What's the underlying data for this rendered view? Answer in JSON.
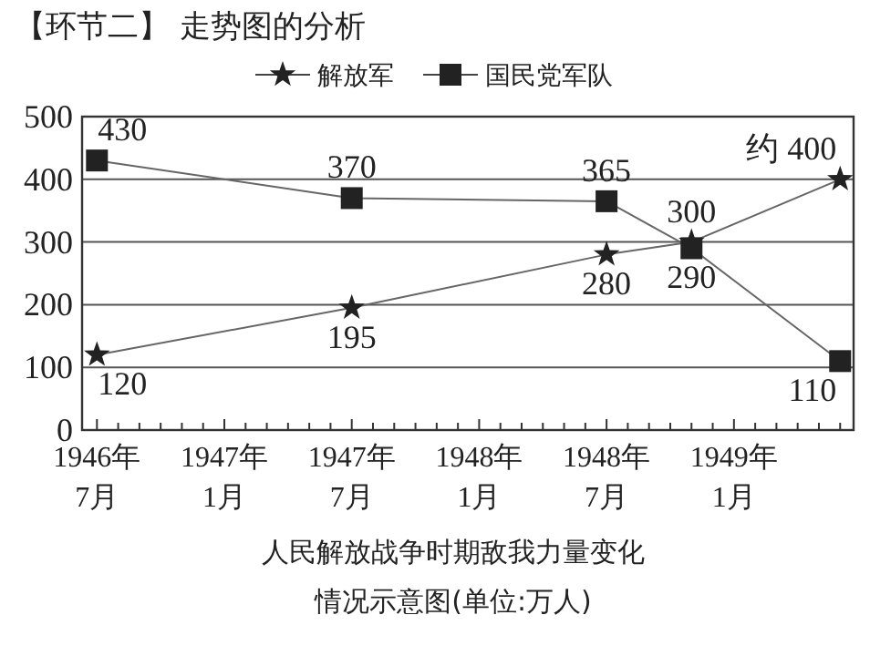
{
  "chart_data": {
    "type": "line",
    "title": "【环节二】 走势图的分析",
    "x": [
      "1946-07",
      "1947-07",
      "1948-07",
      "1948-11",
      "1949-06"
    ],
    "series": [
      {
        "name": "解放军",
        "color": "#222222",
        "marker": "star",
        "values": [
          120,
          195,
          280,
          300,
          400
        ],
        "value_labels": [
          "120",
          "195",
          "280",
          "300",
          "约 400"
        ]
      },
      {
        "name": "国民党军队",
        "color": "#222222",
        "marker": "square",
        "values": [
          430,
          370,
          365,
          290,
          110
        ],
        "value_labels": [
          "430",
          "370",
          "365",
          "290",
          "110"
        ]
      }
    ],
    "xlim": [
      "1946-06-10",
      "1949-06-20"
    ],
    "xticks": [
      {
        "value": "1946-07",
        "label": "1946年\n7月"
      },
      {
        "value": "1946-08",
        "label": null
      },
      {
        "value": "1946-09",
        "label": null
      },
      {
        "value": "1946-10",
        "label": null
      },
      {
        "value": "1946-11",
        "label": null
      },
      {
        "value": "1946-12",
        "label": null
      },
      {
        "value": "1947-01",
        "label": "1947年\n1月"
      },
      {
        "value": "1947-02",
        "label": null
      },
      {
        "value": "1947-03",
        "label": null
      },
      {
        "value": "1947-04",
        "label": null
      },
      {
        "value": "1947-05",
        "label": null
      },
      {
        "value": "1947-06",
        "label": null
      },
      {
        "value": "1947-07",
        "label": "1947年\n7月"
      },
      {
        "value": "1947-08",
        "label": null
      },
      {
        "value": "1947-09",
        "label": null
      },
      {
        "value": "1947-10",
        "label": null
      },
      {
        "value": "1947-11",
        "label": null
      },
      {
        "value": "1947-12",
        "label": null
      },
      {
        "value": "1948-01",
        "label": "1948年\n1月"
      },
      {
        "value": "1948-02",
        "label": null
      },
      {
        "value": "1948-03",
        "label": null
      },
      {
        "value": "1948-04",
        "label": null
      },
      {
        "value": "1948-05",
        "label": null
      },
      {
        "value": "1948-06",
        "label": null
      },
      {
        "value": "1948-07",
        "label": "1948年\n7月"
      },
      {
        "value": "1948-08",
        "label": null
      },
      {
        "value": "1948-09",
        "label": null
      },
      {
        "value": "1948-10",
        "label": null
      },
      {
        "value": "1948-11",
        "label": null
      },
      {
        "value": "1948-12",
        "label": null
      },
      {
        "value": "1949-01",
        "label": "1949年\n1月"
      },
      {
        "value": "1949-02",
        "label": null
      },
      {
        "value": "1949-03",
        "label": null
      },
      {
        "value": "1949-04",
        "label": null
      },
      {
        "value": "1949-05",
        "label": null
      },
      {
        "value": "1949-06",
        "label": null
      }
    ],
    "ylim": [
      0,
      500
    ],
    "yticks": [
      0,
      100,
      200,
      300,
      400,
      500
    ],
    "grid": "y",
    "legend": "top",
    "line_style": "solid",
    "annotations": [
      "人民解放战争时期敌我力量变化",
      "情况示意图(单位:万人)"
    ]
  }
}
